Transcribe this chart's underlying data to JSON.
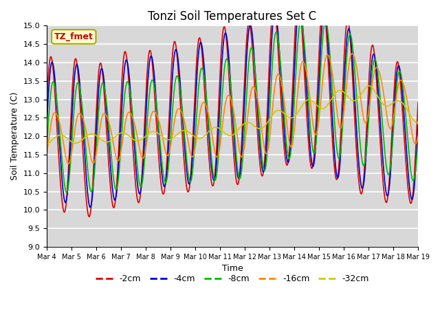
{
  "title": "Tonzi Soil Temperatures Set C",
  "xlabel": "Time",
  "ylabel": "Soil Temperature (C)",
  "ylim": [
    9.0,
    15.0
  ],
  "yticks": [
    9.0,
    9.5,
    10.0,
    10.5,
    11.0,
    11.5,
    12.0,
    12.5,
    13.0,
    13.5,
    14.0,
    14.5,
    15.0
  ],
  "xtick_labels": [
    "Mar 4",
    "Mar 5",
    "Mar 6",
    "Mar 7",
    "Mar 8",
    "Mar 9",
    "Mar 10",
    "Mar 11",
    "Mar 12",
    "Mar 13",
    "Mar 14",
    "Mar 15",
    "Mar 16",
    "Mar 17",
    "Mar 18",
    "Mar 19"
  ],
  "colors": {
    "-2cm": "#dd0000",
    "-4cm": "#0000cc",
    "-8cm": "#00bb00",
    "-16cm": "#ff8800",
    "-32cm": "#cccc00"
  },
  "legend_labels": [
    "-2cm",
    "-4cm",
    "-8cm",
    "-16cm",
    "-32cm"
  ],
  "annotation_text": "TZ_fmet",
  "annotation_color": "#cc0000",
  "annotation_bg": "#ffffcc",
  "background_color": "#d8d8d8",
  "linewidth": 1.2,
  "grid_color": "white"
}
